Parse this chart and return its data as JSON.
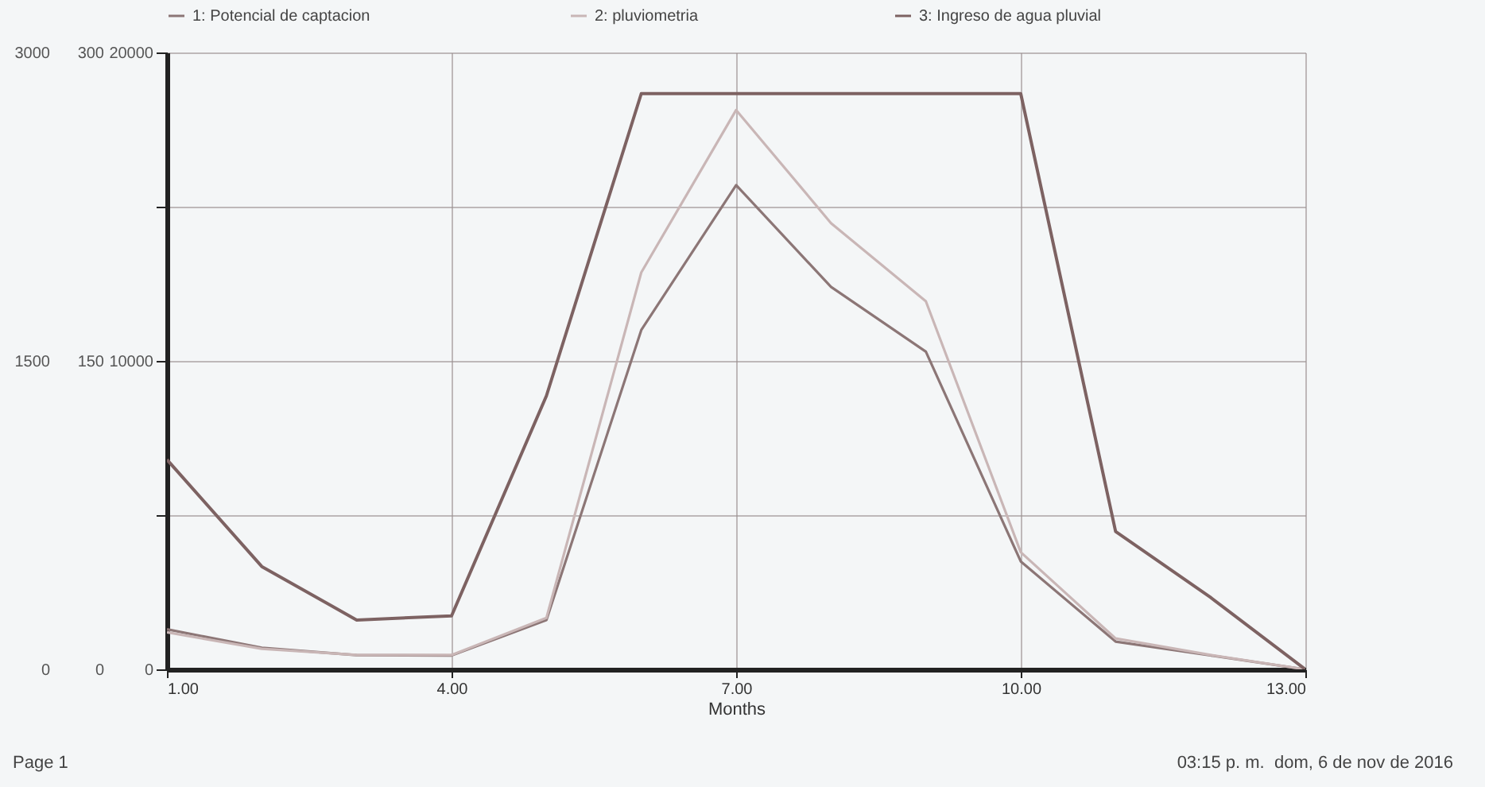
{
  "chart_data": {
    "type": "line",
    "xlabel": "Months",
    "x": [
      1,
      2,
      3,
      4,
      5,
      6,
      7,
      8,
      9,
      10,
      11,
      12,
      13
    ],
    "xlim": [
      1,
      13
    ],
    "xticks": [
      {
        "value": 1,
        "label": "1.00"
      },
      {
        "value": 4,
        "label": "4.00"
      },
      {
        "value": 7,
        "label": "7.00"
      },
      {
        "value": 10,
        "label": "10.00"
      },
      {
        "value": 13,
        "label": "13.00"
      }
    ],
    "ylim": [
      0,
      20000
    ],
    "yticks": [
      0,
      {
        "value": 5000,
        "label": null
      },
      10000,
      {
        "value": 15000,
        "label": null
      },
      20000
    ],
    "y2lim": [
      0,
      300
    ],
    "y2ticks": [
      0,
      150,
      300
    ],
    "y3lim": [
      0,
      3000
    ],
    "y3ticks": [
      0,
      1500,
      3000
    ],
    "grid": true,
    "legend": "top",
    "series": [
      {
        "name": "1: Potencial de  captacion",
        "color": "#8c7676",
        "values": [
          1300,
          700,
          460,
          450,
          1600,
          11000,
          15700,
          12400,
          10300,
          3500,
          900,
          450,
          0
        ]
      },
      {
        "name": "2: pluviometria",
        "color": "#c9b6b6",
        "axis": "y2",
        "values": [
          18,
          10,
          7,
          7,
          25,
          193,
          272,
          217,
          179,
          57,
          15,
          7,
          0
        ]
      },
      {
        "name": "3: Ingreso de agua pluvial",
        "color": "#7d6262",
        "axis": "y3",
        "values": [
          1020,
          500,
          240,
          260,
          1330,
          2800,
          2800,
          2800,
          2800,
          2800,
          670,
          350,
          0
        ]
      }
    ],
    "annotations": [
      "Page 1",
      "03:15 p. m.  dom, 6 de nov de 2016"
    ]
  }
}
